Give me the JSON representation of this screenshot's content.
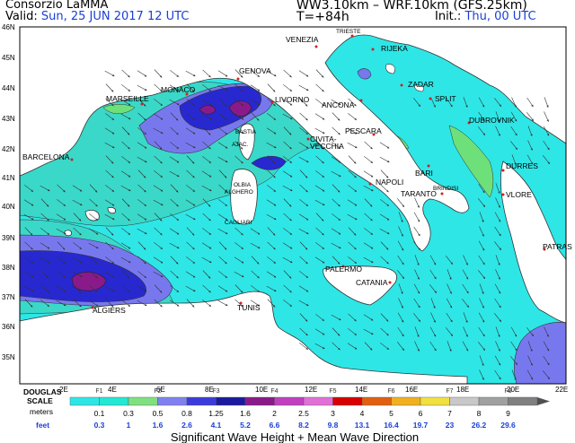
{
  "header": {
    "org": "Consorzio LaMMA",
    "valid_label": "Valid:",
    "valid_value": "Sun, 25 JUN 2017   12 UTC",
    "model": "WW3.10km  –  WRF.10km  (GFS.25km)",
    "lead": "T=+84h",
    "init_label": "Init.:",
    "init_value": "Thu, 00 UTC"
  },
  "axes": {
    "lat_labels": [
      "46N",
      "45N",
      "44N",
      "43N",
      "42N",
      "41N",
      "40N",
      "39N",
      "38N",
      "37N",
      "36N",
      "35N"
    ],
    "lon_labels": [
      "2E",
      "4E",
      "6E",
      "8E",
      "10E",
      "12E",
      "14E",
      "16E",
      "18E",
      "20E",
      "22E"
    ]
  },
  "cities": [
    {
      "name": "TRIESTE",
      "small": true
    },
    {
      "name": "VENEZIA"
    },
    {
      "name": "RIJEKA"
    },
    {
      "name": "GENOVA"
    },
    {
      "name": "MONACO"
    },
    {
      "name": "MARSEILLE"
    },
    {
      "name": "LIVORNO"
    },
    {
      "name": "ANCONA"
    },
    {
      "name": "ZADAR"
    },
    {
      "name": "SPLIT"
    },
    {
      "name": "DUBROVNIK"
    },
    {
      "name": "BASTIA",
      "small": true
    },
    {
      "name": "AJAC.",
      "small": true
    },
    {
      "name": "PESCARA"
    },
    {
      "name": "CIVITA-"
    },
    {
      "name": "VECCHIA"
    },
    {
      "name": "BARCELONA"
    },
    {
      "name": "OLBIA",
      "small": true
    },
    {
      "name": "ALGHERO",
      "small": true
    },
    {
      "name": "BARI"
    },
    {
      "name": "NAPOLI"
    },
    {
      "name": "BRINDISI",
      "small": true
    },
    {
      "name": "DURRES"
    },
    {
      "name": "TARANTO"
    },
    {
      "name": "VLORE"
    },
    {
      "name": "CAGLIARI",
      "small": true
    },
    {
      "name": "PATRAS"
    },
    {
      "name": "PALERMO"
    },
    {
      "name": "CATANIA"
    },
    {
      "name": "ALGIERS"
    },
    {
      "name": "TUNIS"
    }
  ],
  "legend": {
    "scale_title_1": "DOUGLAS",
    "scale_title_2": "SCALE",
    "douglas": [
      "F1",
      "F2",
      "F3",
      "F4",
      "F5",
      "F6",
      "F7",
      "F8"
    ],
    "meters_label": "meters",
    "meters": [
      "0.1",
      "0.3",
      "0.5",
      "0.8",
      "1.25",
      "1.6",
      "2",
      "2.5",
      "3",
      "4",
      "5",
      "6",
      "7",
      "8",
      "9"
    ],
    "feet_label": "feet",
    "feet": [
      "0.3",
      "1",
      "1.6",
      "2.6",
      "4.1",
      "5.2",
      "6.6",
      "8.2",
      "9.8",
      "13.1",
      "16.4",
      "19.7",
      "23",
      "26.2",
      "29.6"
    ],
    "colors": [
      "#2ee6e6",
      "#22e8d4",
      "#7fe07f",
      "#8080f0",
      "#3c3cdc",
      "#1a1aa0",
      "#8a1a8a",
      "#c040c0",
      "#e070d8",
      "#d80000",
      "#e06010",
      "#f0b020",
      "#f0e040",
      "#c8c8c8",
      "#a0a0a0",
      "#808080"
    ],
    "caption": "Significant Wave Height + Mean Wave Direction"
  },
  "colors": {
    "sea_base": "#2ee6e6",
    "land": "#ffffff",
    "band_0_5": "#3ad8c8",
    "band_0_8": "#7878ee",
    "band_1_25": "#2828d0",
    "band_1_6": "#8a1a8a",
    "coast_low": "#6ee07a"
  }
}
